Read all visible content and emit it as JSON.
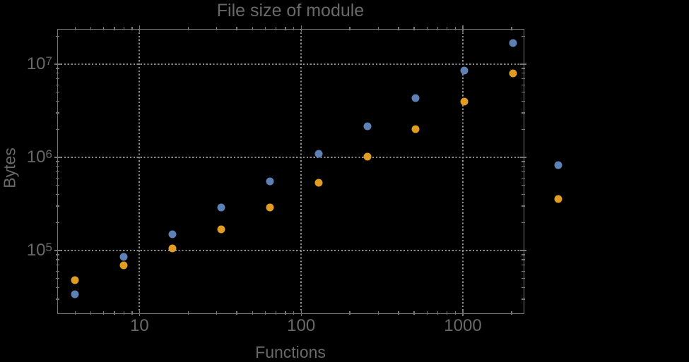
{
  "style_colors": {
    "text": "#696969",
    "frame": "#757575",
    "grid": "#8C8C8C",
    "background": "#000000",
    "series_blue": "#5E81B5",
    "series_orange": "#E19C24"
  },
  "chart_data": {
    "type": "scatter",
    "title": "File size of module",
    "xlabel": "Functions",
    "ylabel": "Bytes",
    "x_scale": "log",
    "y_scale": "log",
    "xlim": [
      3.1,
      2360
    ],
    "ylim": [
      21500,
      24000000
    ],
    "grid": "dotted gridlines at decade ticks, framed plot, no legend",
    "legend_position": "none",
    "x_major_ticks": [
      {
        "value": 10,
        "label": "10"
      },
      {
        "value": 100,
        "label": "100"
      },
      {
        "value": 1000,
        "label": "1000"
      }
    ],
    "y_major_ticks": [
      {
        "value": 100000,
        "base": "10",
        "exponent": "5",
        "label": "10^5"
      },
      {
        "value": 1000000,
        "base": "10",
        "exponent": "6",
        "label": "10^6"
      },
      {
        "value": 10000000,
        "base": "10",
        "exponent": "7",
        "label": "10^7"
      }
    ],
    "series": [
      {
        "name": "blue-series",
        "color": "#5E81B5",
        "points": [
          [
            4,
            34000
          ],
          [
            8,
            85000
          ],
          [
            16,
            150000
          ],
          [
            32,
            290000
          ],
          [
            64,
            550000
          ],
          [
            128,
            1100000
          ],
          [
            256,
            2150000
          ],
          [
            512,
            4350000
          ],
          [
            1024,
            8600000
          ],
          [
            2048,
            17000000
          ],
          [
            3900,
            820000
          ]
        ]
      },
      {
        "name": "orange-series",
        "color": "#E19C24",
        "points": [
          [
            4,
            48000
          ],
          [
            8,
            70000
          ],
          [
            16,
            106000
          ],
          [
            32,
            170000
          ],
          [
            64,
            290000
          ],
          [
            128,
            530000
          ],
          [
            256,
            1020000
          ],
          [
            512,
            2000000
          ],
          [
            1024,
            4000000
          ],
          [
            2048,
            8000000
          ],
          [
            3900,
            355000
          ]
        ]
      }
    ]
  }
}
